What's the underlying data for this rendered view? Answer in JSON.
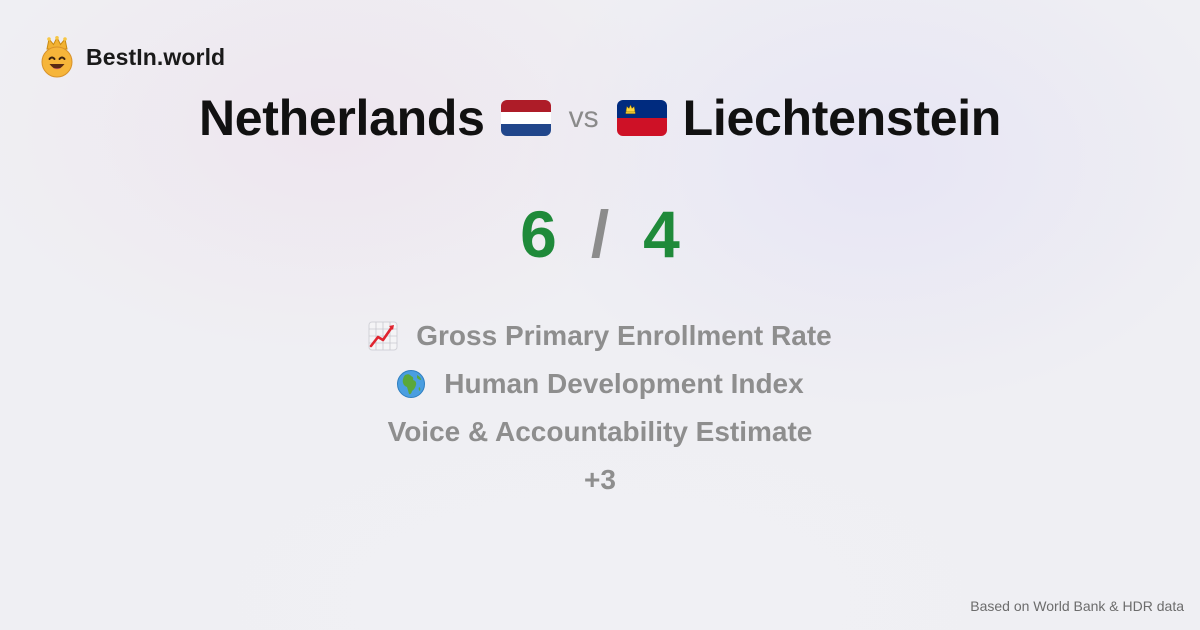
{
  "brand": {
    "name": "BestIn.world",
    "logo_icon": "crown-smiley-icon"
  },
  "comparison": {
    "country_a": {
      "name": "Netherlands",
      "flag_icon": "netherlands-flag-icon",
      "flag_colors": [
        "#ae1c28",
        "#ffffff",
        "#21468b"
      ]
    },
    "vs_label": "vs",
    "country_b": {
      "name": "Liechtenstein",
      "flag_icon": "liechtenstein-flag-icon",
      "flag_colors": [
        "#002b7f",
        "#ce1126",
        "#ffd83d"
      ]
    }
  },
  "score": {
    "a": "6",
    "separator": "/",
    "b": "4",
    "color": "#1f8a3a"
  },
  "metrics": [
    {
      "icon": "chart-increasing-icon",
      "label": "Gross Primary Enrollment Rate"
    },
    {
      "icon": "globe-africa-icon",
      "label": "Human Development Index"
    },
    {
      "icon": "",
      "label": "Voice & Accountability Estimate"
    },
    {
      "icon": "",
      "label": "+3"
    }
  ],
  "footer": {
    "source": "Based on World Bank & HDR data"
  }
}
